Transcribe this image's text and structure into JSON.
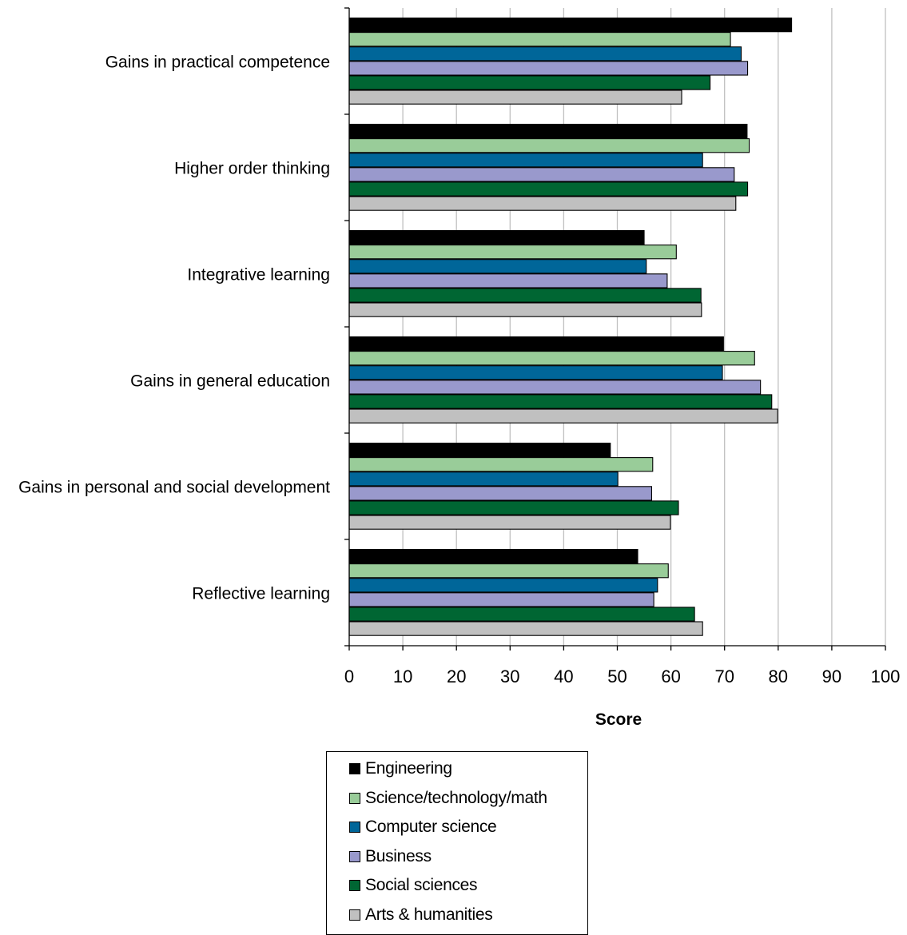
{
  "chart_data": {
    "type": "bar",
    "orientation": "horizontal",
    "xlabel": "Score",
    "xlim": [
      0,
      100
    ],
    "x_ticks": [
      0,
      10,
      20,
      30,
      40,
      50,
      60,
      70,
      80,
      90,
      100
    ],
    "grid": "vertical",
    "legend_position": "bottom",
    "categories": [
      "Gains in practical competence",
      "Higher order thinking",
      "Integrative learning",
      "Gains in general education",
      "Gains in personal and social development",
      "Reflective learning"
    ],
    "series": [
      {
        "name": "Engineering",
        "color": "#000000",
        "values": [
          82.5,
          74.2,
          55.0,
          69.8,
          48.7,
          53.8
        ]
      },
      {
        "name": "Science/technology/math",
        "color": "#99cc99",
        "values": [
          71.1,
          74.6,
          61.0,
          75.6,
          56.6,
          59.5
        ]
      },
      {
        "name": "Computer science",
        "color": "#006699",
        "values": [
          73.1,
          65.9,
          55.4,
          69.6,
          50.1,
          57.5
        ]
      },
      {
        "name": "Business",
        "color": "#9999cc",
        "values": [
          74.3,
          71.8,
          59.3,
          76.7,
          56.4,
          56.8
        ]
      },
      {
        "name": "Social sciences",
        "color": "#006633",
        "values": [
          67.3,
          74.3,
          65.6,
          78.8,
          61.4,
          64.4
        ]
      },
      {
        "name": "Arts & humanities",
        "color": "#c0c0c0",
        "values": [
          62.0,
          72.1,
          65.7,
          79.9,
          59.9,
          65.9
        ]
      }
    ]
  }
}
